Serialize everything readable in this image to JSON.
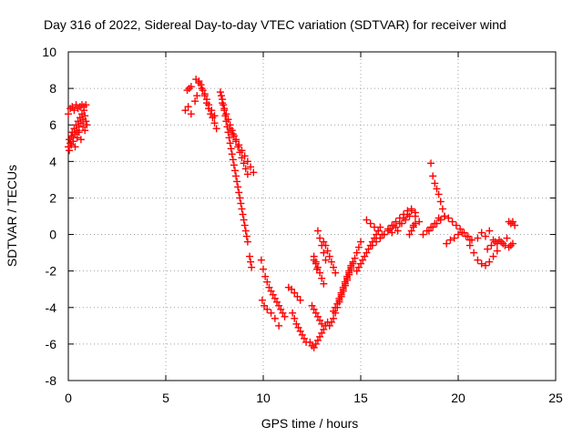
{
  "chart_data": {
    "type": "scatter",
    "title": "Day 316 of 2022, Sidereal Day-to-day VTEC variation (SDTVAR) for receiver wind",
    "xlabel": "GPS time / hours",
    "ylabel": "SDTVAR / TECUs",
    "xlim": [
      0,
      25
    ],
    "ylim": [
      -8,
      10
    ],
    "xticks": [
      0,
      5,
      10,
      15,
      20,
      25
    ],
    "yticks": [
      -8,
      -6,
      -4,
      -2,
      0,
      2,
      4,
      6,
      8,
      10
    ],
    "grid": true,
    "marker": "+",
    "marker_color": "#ff0000",
    "series": [
      {
        "name": "SDTVAR",
        "x": [
          0.0,
          0.05,
          0.1,
          0.15,
          0.2,
          0.25,
          0.3,
          0.35,
          0.4,
          0.45,
          0.5,
          0.55,
          0.6,
          0.65,
          0.7,
          0.75,
          0.8,
          0.85,
          0.9,
          0.95,
          0.0,
          0.1,
          0.2,
          0.3,
          0.4,
          0.5,
          0.6,
          0.7,
          0.8,
          0.9,
          0.05,
          0.15,
          0.25,
          0.35,
          0.45,
          0.55,
          0.65,
          0.75,
          0.85,
          6.1,
          6.2,
          6.3,
          6.0,
          6.15,
          6.3,
          6.5,
          6.6,
          6.7,
          6.8,
          6.9,
          7.0,
          7.1,
          7.2,
          7.3,
          7.4,
          7.5,
          7.6,
          6.55,
          6.7,
          6.85,
          7.0,
          7.1,
          7.2,
          7.35,
          7.5,
          7.8,
          7.85,
          7.9,
          7.95,
          8.0,
          8.05,
          8.1,
          8.15,
          8.2,
          8.25,
          8.3,
          8.35,
          8.4,
          8.45,
          8.5,
          8.55,
          8.6,
          8.65,
          8.7,
          8.75,
          8.8,
          8.85,
          8.9,
          8.95,
          9.0,
          9.05,
          9.1,
          9.15,
          9.2,
          7.9,
          8.0,
          8.1,
          8.2,
          8.3,
          8.4,
          8.5,
          8.6,
          8.7,
          8.8,
          8.9,
          9.0,
          9.1,
          9.2,
          8.3,
          8.45,
          8.6,
          8.75,
          8.9,
          9.05,
          9.2,
          9.35,
          9.5,
          9.3,
          9.35,
          9.4,
          9.9,
          10.0,
          10.1,
          10.2,
          10.3,
          10.4,
          10.5,
          10.6,
          10.7,
          10.8,
          10.9,
          11.0,
          11.1,
          9.95,
          10.05,
          10.2,
          10.4,
          10.6,
          10.8,
          11.3,
          11.45,
          11.6,
          11.75,
          11.9,
          11.5,
          11.6,
          11.7,
          11.8,
          11.9,
          12.0,
          12.1,
          12.2,
          12.4,
          12.5,
          12.6,
          12.7,
          12.8,
          12.9,
          13.0,
          13.1,
          13.2,
          13.3,
          12.5,
          12.6,
          12.7,
          12.8,
          12.9,
          13.0,
          12.6,
          12.7,
          12.8,
          12.9,
          13.0,
          13.1,
          12.8,
          12.9,
          13.0,
          13.1,
          13.2,
          13.1,
          13.2,
          13.3,
          13.4,
          13.5,
          13.6,
          13.7,
          13.4,
          13.5,
          13.6,
          13.7,
          13.8,
          13.9,
          14.0,
          14.1,
          14.2,
          14.3,
          14.4,
          14.5,
          14.6,
          14.7,
          14.8,
          14.9,
          15.0,
          13.6,
          13.7,
          13.8,
          13.9,
          14.0,
          14.1,
          14.2,
          14.3,
          14.4,
          14.5,
          13.9,
          14.0,
          14.1,
          14.2,
          14.3,
          14.4,
          14.5,
          14.6,
          14.8,
          14.9,
          15.0,
          15.1,
          15.2,
          15.3,
          15.4,
          15.5,
          15.6,
          15.7,
          15.8,
          15.9,
          16.0,
          15.3,
          15.5,
          15.7,
          15.9,
          16.1,
          15.6,
          15.8,
          16.0,
          16.2,
          16.4,
          16.6,
          16.8,
          17.0,
          17.2,
          17.4,
          17.6,
          17.8,
          18.0,
          16.0,
          16.2,
          16.4,
          16.6,
          16.8,
          17.0,
          17.2,
          17.4,
          17.6,
          17.8,
          16.5,
          16.7,
          16.9,
          17.1,
          17.3,
          17.5,
          17.7,
          17.5,
          17.6,
          17.7,
          17.8,
          18.6,
          18.7,
          18.8,
          18.9,
          19.0,
          19.1,
          19.2,
          19.3,
          18.5,
          18.7,
          18.9,
          19.1,
          19.3,
          19.5,
          19.7,
          19.9,
          20.1,
          20.3,
          20.5,
          20.7,
          19.4,
          19.6,
          19.8,
          20.0,
          20.2,
          20.4,
          20.6,
          18.2,
          18.4,
          18.6,
          18.8,
          19.0,
          20.6,
          20.8,
          21.0,
          21.2,
          21.4,
          21.6,
          21.8,
          22.0,
          21.0,
          21.2,
          21.4,
          21.6,
          21.8,
          22.0,
          22.2,
          22.4,
          22.6,
          22.8,
          21.5,
          21.7,
          21.9,
          22.1,
          22.3,
          22.5,
          22.7,
          22.6,
          22.7,
          22.8,
          22.9,
          12.6,
          12.7,
          12.75
        ],
        "y": [
          4.8,
          5.2,
          5.0,
          5.4,
          5.6,
          5.3,
          5.8,
          5.5,
          6.0,
          5.7,
          6.2,
          5.9,
          6.4,
          6.1,
          6.6,
          6.3,
          6.8,
          6.5,
          6.2,
          6.0,
          6.6,
          6.9,
          7.0,
          6.8,
          7.1,
          6.9,
          7.0,
          7.1,
          7.0,
          7.1,
          4.6,
          4.9,
          5.1,
          4.8,
          5.3,
          5.6,
          5.2,
          5.9,
          5.7,
          7.9,
          8.0,
          8.1,
          6.8,
          7.0,
          6.6,
          7.3,
          7.6,
          8.4,
          8.2,
          7.9,
          7.6,
          7.2,
          6.9,
          6.6,
          6.4,
          6.1,
          5.8,
          8.5,
          8.3,
          8.0,
          7.7,
          7.4,
          7.1,
          6.8,
          6.5,
          7.8,
          7.6,
          7.4,
          7.1,
          6.8,
          6.5,
          6.2,
          5.9,
          5.6,
          5.3,
          5.0,
          4.7,
          4.4,
          4.1,
          3.8,
          3.5,
          3.2,
          2.9,
          2.6,
          2.3,
          2.0,
          1.7,
          1.4,
          1.1,
          0.8,
          0.5,
          0.2,
          -0.1,
          -0.4,
          7.2,
          6.9,
          6.6,
          6.3,
          6.0,
          5.7,
          5.4,
          5.1,
          4.8,
          4.5,
          4.2,
          3.9,
          3.6,
          3.3,
          5.8,
          5.5,
          5.2,
          4.9,
          4.6,
          4.3,
          4.0,
          3.7,
          3.4,
          -1.2,
          -1.5,
          -1.8,
          -1.4,
          -1.9,
          -2.3,
          -2.6,
          -2.9,
          -3.1,
          -3.3,
          -3.5,
          -3.7,
          -3.9,
          -4.1,
          -4.3,
          -4.5,
          -3.6,
          -3.9,
          -4.1,
          -4.3,
          -4.6,
          -5.0,
          -2.9,
          -3.0,
          -3.2,
          -3.4,
          -3.6,
          -4.3,
          -4.6,
          -4.9,
          -5.1,
          -5.3,
          -5.5,
          -5.7,
          -5.9,
          -5.9,
          -6.1,
          -6.2,
          -6.0,
          -5.8,
          -5.6,
          -5.4,
          -5.2,
          -5.0,
          -4.8,
          -3.9,
          -4.1,
          -4.3,
          -4.5,
          -4.7,
          -4.9,
          -1.2,
          -1.5,
          -1.8,
          -2.1,
          -2.4,
          -2.7,
          0.2,
          -0.2,
          -0.6,
          -1.0,
          -1.4,
          -0.4,
          -0.6,
          -0.9,
          -1.2,
          -1.5,
          -1.8,
          -2.1,
          -5.0,
          -4.8,
          -4.6,
          -4.3,
          -4.0,
          -3.7,
          -3.4,
          -3.1,
          -2.8,
          -2.5,
          -2.2,
          -1.9,
          -1.6,
          -1.3,
          -1.0,
          -0.7,
          -0.4,
          -4.2,
          -4.0,
          -3.8,
          -3.5,
          -3.2,
          -2.9,
          -2.6,
          -2.3,
          -2.0,
          -1.7,
          -3.6,
          -3.3,
          -3.0,
          -2.7,
          -2.4,
          -2.1,
          -1.8,
          -1.5,
          -2.0,
          -1.8,
          -1.6,
          -1.4,
          -1.2,
          -1.0,
          -0.8,
          -0.6,
          -0.4,
          -0.2,
          0.0,
          0.2,
          0.4,
          0.8,
          0.6,
          0.4,
          0.2,
          0.0,
          -0.6,
          -0.4,
          -0.2,
          0.0,
          0.2,
          0.1,
          0.4,
          0.6,
          0.9,
          1.1,
          1.3,
          1.0,
          0.7,
          -0.2,
          0.0,
          0.3,
          0.5,
          0.7,
          0.9,
          1.1,
          1.3,
          1.4,
          1.2,
          0.3,
          0.5,
          0.2,
          0.6,
          0.8,
          1.0,
          0.5,
          0.0,
          0.2,
          0.4,
          0.6,
          3.9,
          3.2,
          2.8,
          2.5,
          2.2,
          1.8,
          1.4,
          1.0,
          0.2,
          0.4,
          0.6,
          0.8,
          1.0,
          0.9,
          0.7,
          0.5,
          0.3,
          0.1,
          -0.1,
          -0.3,
          -0.5,
          -0.3,
          -0.2,
          0.0,
          0.1,
          -0.1,
          -0.3,
          0.0,
          0.2,
          0.4,
          0.6,
          0.9,
          -0.6,
          -1.0,
          -1.4,
          -1.6,
          -1.7,
          -1.5,
          -1.2,
          -0.9,
          -0.2,
          0.1,
          -0.1,
          0.2,
          -0.3,
          -0.5,
          -0.4,
          -0.6,
          -0.7,
          -0.5,
          -0.8,
          -0.6,
          -0.4,
          -0.3,
          -0.5,
          -0.2,
          -0.6,
          0.7,
          0.6,
          0.7,
          0.5,
          -1.4,
          -1.6,
          -1.9
        ]
      }
    ]
  }
}
